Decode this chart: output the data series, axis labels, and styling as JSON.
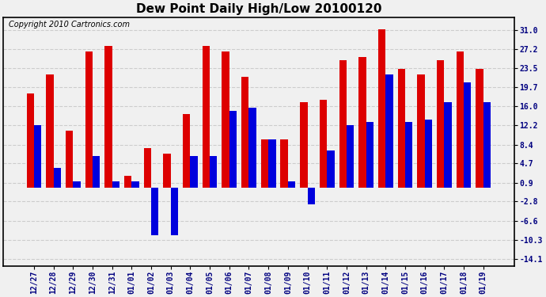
{
  "title": "Dew Point Daily High/Low 20100120",
  "copyright": "Copyright 2010 Cartronics.com",
  "categories": [
    "12/27",
    "12/28",
    "12/29",
    "12/30",
    "12/31",
    "01/01",
    "01/02",
    "01/03",
    "01/04",
    "01/05",
    "01/06",
    "01/07",
    "01/08",
    "01/09",
    "01/10",
    "01/11",
    "01/12",
    "01/13",
    "01/14",
    "01/15",
    "01/16",
    "01/17",
    "01/18",
    "01/19"
  ],
  "highs": [
    18.5,
    22.2,
    11.1,
    26.7,
    27.8,
    2.2,
    7.8,
    6.7,
    14.4,
    27.8,
    26.7,
    21.7,
    9.4,
    9.4,
    16.7,
    17.2,
    25.0,
    25.6,
    31.1,
    23.3,
    22.2,
    25.0,
    26.7,
    23.3
  ],
  "lows": [
    12.2,
    3.9,
    1.1,
    6.1,
    1.1,
    1.1,
    -9.4,
    -9.4,
    6.1,
    6.1,
    15.0,
    15.6,
    9.4,
    1.1,
    -3.3,
    7.2,
    12.2,
    12.8,
    22.2,
    12.8,
    13.3,
    16.7,
    20.6,
    16.7
  ],
  "high_color": "#dd0000",
  "low_color": "#0000dd",
  "bg_color": "#f0f0f0",
  "plot_bg": "#f0f0f0",
  "grid_color": "#cccccc",
  "yticks": [
    31.0,
    27.2,
    23.5,
    19.7,
    16.0,
    12.2,
    8.4,
    4.7,
    0.9,
    -2.8,
    -6.6,
    -10.3,
    -14.1
  ],
  "ylim": [
    -15.5,
    33.5
  ],
  "bar_width": 0.38,
  "title_fontsize": 11,
  "tick_fontsize": 7,
  "copyright_fontsize": 7
}
